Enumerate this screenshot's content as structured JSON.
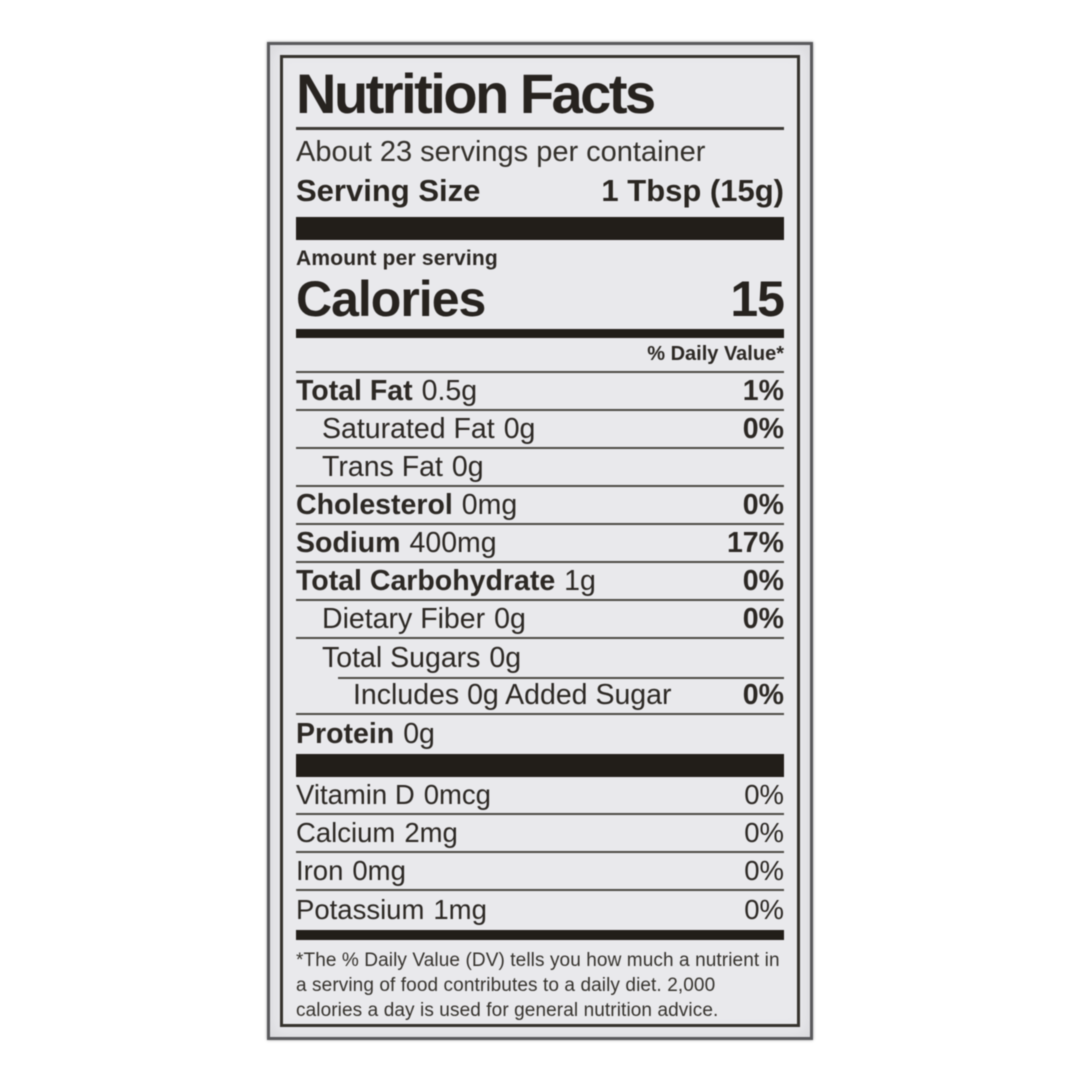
{
  "colors": {
    "label_background": "#e9e9ec",
    "ink": "#2c2824",
    "bar": "#221e19",
    "page_background": "#ffffff"
  },
  "label": {
    "title": "Nutrition Facts",
    "servings_per_container": "About 23 servings per container",
    "serving_size_label": "Serving Size",
    "serving_size_value": "1 Tbsp (15g)",
    "amount_per_serving": "Amount per serving",
    "calories_label": "Calories",
    "calories_value": "15",
    "daily_value_header": "% Daily Value*",
    "nutrients": [
      {
        "name": "Total Fat",
        "amount": "0.5g",
        "dv": "1%",
        "bold": true,
        "indent": 0
      },
      {
        "name": "Saturated Fat",
        "amount": "0g",
        "dv": "0%",
        "bold": false,
        "indent": 1
      },
      {
        "name": "Trans Fat",
        "amount": "0g",
        "dv": "",
        "bold": false,
        "indent": 1
      },
      {
        "name": "Cholesterol",
        "amount": "0mg",
        "dv": "0%",
        "bold": true,
        "indent": 0
      },
      {
        "name": "Sodium",
        "amount": "400mg",
        "dv": "17%",
        "bold": true,
        "indent": 0
      },
      {
        "name": "Total Carbohydrate",
        "amount": "1g",
        "dv": "0%",
        "bold": true,
        "indent": 0
      },
      {
        "name": "Dietary Fiber",
        "amount": "0g",
        "dv": "0%",
        "bold": false,
        "indent": 1
      },
      {
        "name": "Total Sugars",
        "amount": "0g",
        "dv": "",
        "bold": false,
        "indent": 1,
        "rule_below": "indented"
      },
      {
        "name": "Includes 0g Added Sugar",
        "amount": "",
        "dv": "0%",
        "bold": false,
        "indent": 2
      },
      {
        "name": "Protein",
        "amount": "0g",
        "dv": "",
        "bold": true,
        "indent": 0
      }
    ],
    "micronutrients": [
      {
        "name": "Vitamin D",
        "amount": "0mcg",
        "dv": "0%"
      },
      {
        "name": "Calcium",
        "amount": "2mg",
        "dv": "0%"
      },
      {
        "name": "Iron",
        "amount": "0mg",
        "dv": "0%"
      },
      {
        "name": "Potassium",
        "amount": "1mg",
        "dv": "0%"
      }
    ],
    "footnote": "*The % Daily Value (DV) tells you how much a nutrient in a serving of food contributes to a daily diet. 2,000 calories a day is used for general nutrition advice."
  }
}
